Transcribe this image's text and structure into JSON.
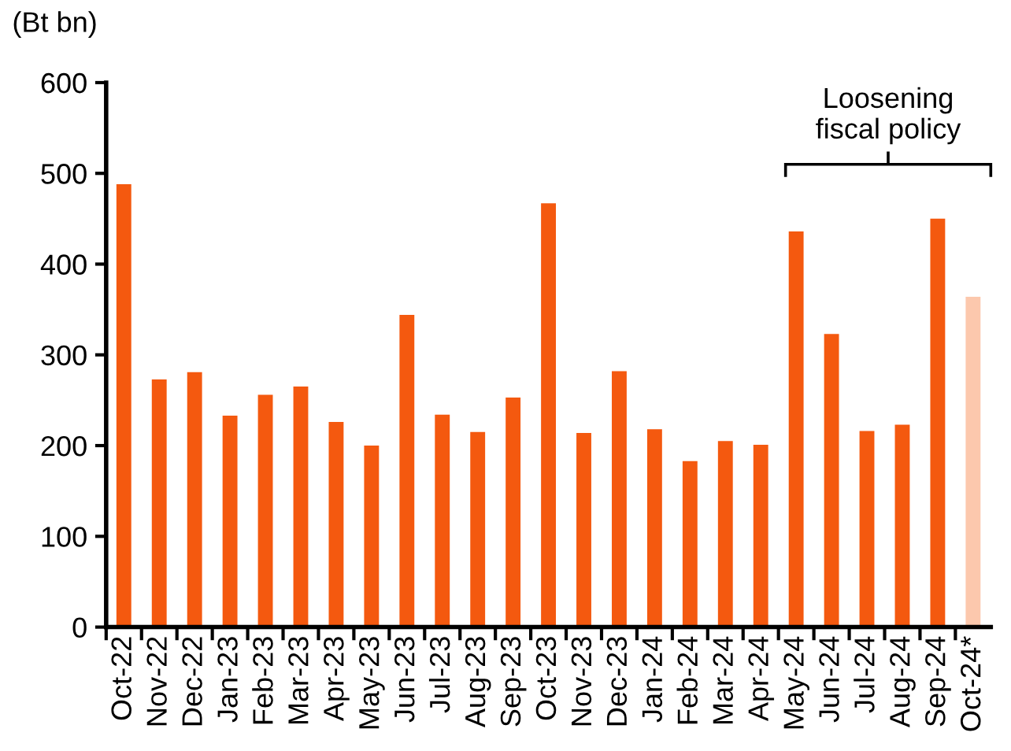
{
  "chart_data": {
    "type": "bar",
    "ylabel": "(Bt bn)",
    "categories": [
      "Oct-22",
      "Nov-22",
      "Dec-22",
      "Jan-23",
      "Feb-23",
      "Mar-23",
      "Apr-23",
      "May-23",
      "Jun-23",
      "Jul-23",
      "Aug-23",
      "Sep-23",
      "Oct-23",
      "Nov-23",
      "Dec-23",
      "Jan-24",
      "Feb-24",
      "Mar-24",
      "Apr-24",
      "May-24",
      "Jun-24",
      "Jul-24",
      "Aug-24",
      "Sep-24",
      "Oct-24*"
    ],
    "values": [
      488,
      273,
      281,
      233,
      256,
      265,
      226,
      200,
      344,
      234,
      215,
      253,
      467,
      214,
      282,
      218,
      183,
      205,
      201,
      436,
      323,
      216,
      223,
      450,
      364
    ],
    "colors": [
      "#f4590f",
      "#f4590f",
      "#f4590f",
      "#f4590f",
      "#f4590f",
      "#f4590f",
      "#f4590f",
      "#f4590f",
      "#f4590f",
      "#f4590f",
      "#f4590f",
      "#f4590f",
      "#f4590f",
      "#f4590f",
      "#f4590f",
      "#f4590f",
      "#f4590f",
      "#f4590f",
      "#f4590f",
      "#f4590f",
      "#f4590f",
      "#f4590f",
      "#f4590f",
      "#f4590f",
      "#fcc8ad"
    ],
    "ylim": [
      0,
      600
    ],
    "yticks": [
      0,
      100,
      200,
      300,
      400,
      500,
      600
    ],
    "grid": false,
    "legend": false,
    "annotations": [
      "Loosening\nfiscal policy"
    ]
  }
}
